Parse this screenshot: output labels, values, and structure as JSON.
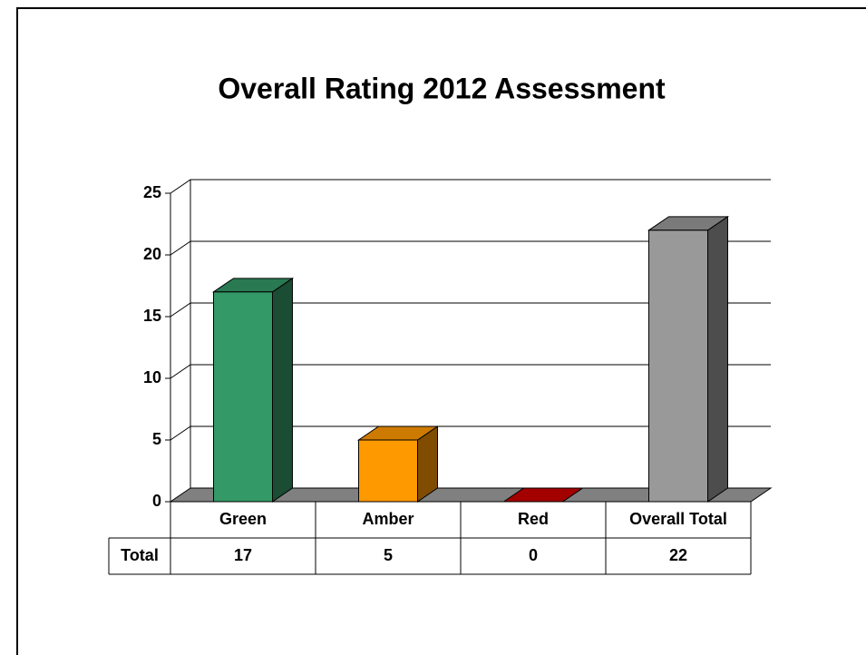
{
  "chart_data": {
    "type": "bar3d",
    "title": "Overall Rating 2012 Assessment",
    "categories": [
      "Green",
      "Amber",
      "Red",
      "Overall Total"
    ],
    "series": [
      {
        "name": "Total",
        "values": [
          17,
          5,
          0,
          22
        ],
        "colors": [
          "#339966",
          "#ff9900",
          "#cc0000",
          "#999999"
        ]
      }
    ],
    "ylim": [
      0,
      25
    ],
    "yticks": [
      0,
      5,
      10,
      15,
      20,
      25
    ],
    "grid": true,
    "data_table": true
  }
}
